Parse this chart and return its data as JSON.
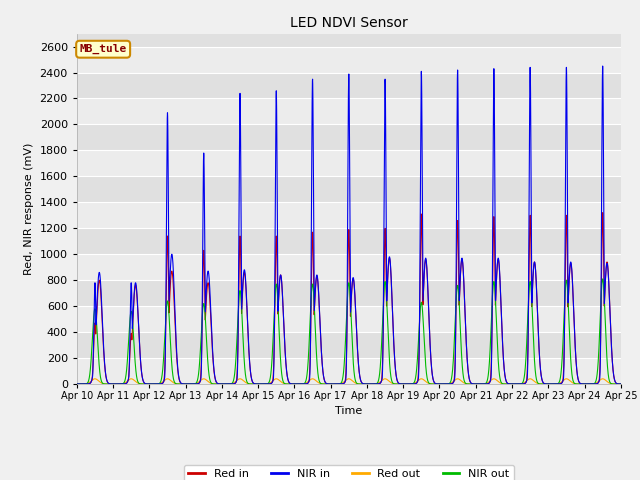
{
  "title": "LED NDVI Sensor",
  "ylabel": "Red, NIR response (mV)",
  "xlabel": "Time",
  "ylim": [
    0,
    2700
  ],
  "background_color": "#f0f0f0",
  "plot_bg_color": "#e8e8e8",
  "grid_color": "#ffffff",
  "colors": {
    "red_in": "#cc0000",
    "nir_in": "#0000ee",
    "red_out": "#ffaa00",
    "nir_out": "#00bb00"
  },
  "annotation_text": "MB_tule",
  "annotation_bg": "#ffffcc",
  "annotation_border": "#cc8800",
  "annotation_text_color": "#880000",
  "x_tick_labels": [
    "Apr 10",
    "Apr 11",
    "Apr 12",
    "Apr 13",
    "Apr 14",
    "Apr 15",
    "Apr 16",
    "Apr 17",
    "Apr 18",
    "Apr 19",
    "Apr 20",
    "Apr 21",
    "Apr 22",
    "Apr 23",
    "Apr 24",
    "Apr 25"
  ],
  "legend_entries": [
    "Red in",
    "NIR in",
    "Red out",
    "NIR out"
  ],
  "day_peaks_nir": [
    780,
    780,
    2090,
    1780,
    2240,
    2260,
    2350,
    2390,
    2350,
    2410,
    2420,
    2430,
    2440,
    2440,
    2450,
    2460
  ],
  "day_peaks_red": [
    470,
    390,
    1140,
    1030,
    1140,
    1140,
    1170,
    1190,
    1200,
    1310,
    1260,
    1290,
    1300,
    1300,
    1320,
    1330
  ],
  "day_peaks_nir_out": [
    580,
    560,
    640,
    620,
    720,
    770,
    770,
    780,
    790,
    630,
    760,
    790,
    790,
    800,
    810,
    800
  ],
  "day_peaks_red_out": [
    40,
    40,
    40,
    40,
    40,
    40,
    40,
    40,
    40,
    40,
    40,
    40,
    40,
    40,
    40,
    40
  ],
  "nir_secondary": [
    860,
    780,
    1000,
    870,
    880,
    840,
    840,
    820,
    980,
    970,
    970,
    970,
    940,
    940,
    930,
    930
  ],
  "red_secondary": [
    800,
    760,
    870,
    780,
    860,
    840,
    830,
    810,
    970,
    960,
    960,
    960,
    940,
    930,
    940,
    930
  ]
}
